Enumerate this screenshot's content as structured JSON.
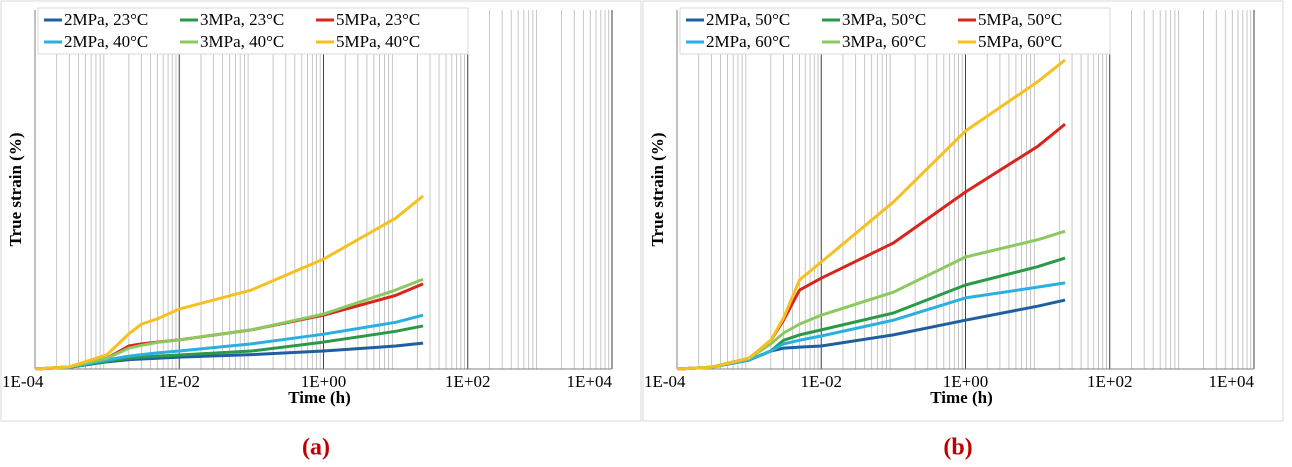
{
  "chart_data": [
    {
      "type": "line",
      "panel_label": "(a)",
      "x_label": "Time (h)",
      "y_label": "True strain (%)",
      "log_x": true,
      "grid": true,
      "legend": "top-left",
      "xlim": [
        0.0001,
        10000
      ],
      "xticks": [
        {
          "value": 0.0001,
          "label": "1E-04"
        },
        {
          "value": 0.01,
          "label": "1E-02"
        },
        {
          "value": 1,
          "label": "1E+00"
        },
        {
          "value": 100,
          "label": "1E+02"
        },
        {
          "value": 10000,
          "label": "1E+04"
        }
      ],
      "ylim": [
        0,
        1
      ],
      "x": [
        0.0001,
        0.0003,
        0.001,
        0.002,
        0.003,
        0.005,
        0.01,
        0.1,
        1,
        10,
        24
      ],
      "series": [
        {
          "name": "2MPa, 23°C",
          "color": "#1f5fa0",
          "values": [
            0,
            0.005,
            0.02,
            0.026,
            0.028,
            0.03,
            0.033,
            0.04,
            0.05,
            0.064,
            0.072
          ]
        },
        {
          "name": "3MPa, 23°C",
          "color": "#2a9a48",
          "values": [
            0,
            0.005,
            0.022,
            0.03,
            0.033,
            0.036,
            0.039,
            0.05,
            0.075,
            0.105,
            0.12
          ]
        },
        {
          "name": "5MPa, 23°C",
          "color": "#d7261e",
          "values": [
            0,
            0.006,
            0.03,
            0.064,
            0.07,
            0.075,
            0.081,
            0.109,
            0.15,
            0.205,
            0.237
          ]
        },
        {
          "name": "2MPa, 40°C",
          "color": "#2ab0e0",
          "values": [
            0,
            0.005,
            0.025,
            0.036,
            0.04,
            0.045,
            0.05,
            0.07,
            0.097,
            0.13,
            0.15
          ]
        },
        {
          "name": "3MPa, 40°C",
          "color": "#8dc860",
          "values": [
            0,
            0.006,
            0.03,
            0.058,
            0.066,
            0.074,
            0.081,
            0.109,
            0.153,
            0.22,
            0.25
          ]
        },
        {
          "name": "5MPa, 40°C",
          "color": "#f5c020",
          "values": [
            0,
            0.006,
            0.04,
            0.098,
            0.125,
            0.14,
            0.167,
            0.22,
            0.306,
            0.42,
            0.482
          ]
        }
      ]
    },
    {
      "type": "line",
      "panel_label": "(b)",
      "x_label": "Time (h)",
      "y_label": "True strain (%)",
      "log_x": true,
      "grid": true,
      "legend": "top-left",
      "xlim": [
        0.0001,
        10000
      ],
      "xticks": [
        {
          "value": 0.0001,
          "label": "1E-04"
        },
        {
          "value": 0.01,
          "label": "1E-02"
        },
        {
          "value": 1,
          "label": "1E+00"
        },
        {
          "value": 100,
          "label": "1E+02"
        },
        {
          "value": 10000,
          "label": "1E+04"
        }
      ],
      "ylim": [
        0,
        1
      ],
      "x": [
        0.0001,
        0.0003,
        0.001,
        0.002,
        0.003,
        0.005,
        0.01,
        0.1,
        1,
        10,
        24
      ],
      "series": [
        {
          "name": "2MPa, 50°C",
          "color": "#1f5fa0",
          "values": [
            0,
            0.005,
            0.025,
            0.05,
            0.058,
            0.061,
            0.064,
            0.095,
            0.136,
            0.175,
            0.192
          ]
        },
        {
          "name": "3MPa, 50°C",
          "color": "#2a9a48",
          "values": [
            0,
            0.005,
            0.025,
            0.05,
            0.08,
            0.095,
            0.109,
            0.156,
            0.234,
            0.285,
            0.309
          ]
        },
        {
          "name": "5MPa, 50°C",
          "color": "#d7261e",
          "values": [
            0,
            0.005,
            0.03,
            0.08,
            0.136,
            0.22,
            0.253,
            0.351,
            0.493,
            0.62,
            0.682
          ]
        },
        {
          "name": "2MPa, 60°C",
          "color": "#2ab0e0",
          "values": [
            0,
            0.005,
            0.025,
            0.05,
            0.07,
            0.08,
            0.092,
            0.136,
            0.198,
            0.228,
            0.24
          ]
        },
        {
          "name": "3MPa, 60°C",
          "color": "#8dc860",
          "values": [
            0,
            0.005,
            0.03,
            0.07,
            0.1,
            0.125,
            0.15,
            0.214,
            0.312,
            0.36,
            0.384
          ]
        },
        {
          "name": "5MPa, 60°C",
          "color": "#f5c020",
          "values": [
            0,
            0.005,
            0.03,
            0.08,
            0.142,
            0.248,
            0.298,
            0.465,
            0.663,
            0.8,
            0.861
          ]
        }
      ]
    }
  ]
}
